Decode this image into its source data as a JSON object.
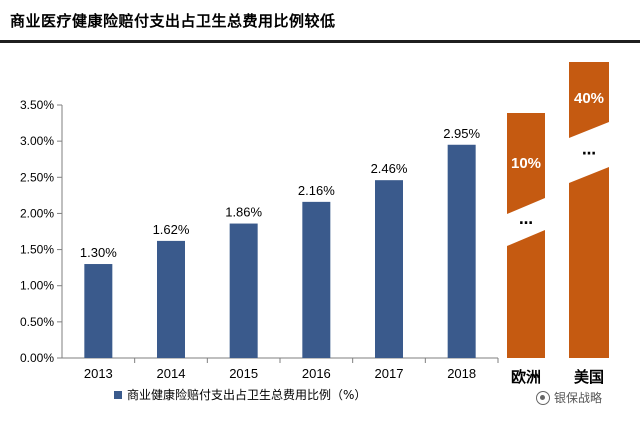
{
  "page": {
    "title": "商业医疗健康险赔付支出占卫生总费用比例较低",
    "watermark": "银保战略"
  },
  "colors": {
    "bar": "#3a5a8c",
    "compare": "#c55a11",
    "rule": "#1f1f1f"
  },
  "chart_data": {
    "type": "bar",
    "categories": [
      "2013",
      "2014",
      "2015",
      "2016",
      "2017",
      "2018"
    ],
    "series": [
      {
        "name": "商业健康险赔付支出占卫生总费用比例（%）",
        "values": [
          1.3,
          1.62,
          1.86,
          2.16,
          2.46,
          2.95
        ],
        "labels": [
          "1.30%",
          "1.62%",
          "1.86%",
          "2.16%",
          "2.46%",
          "2.95%"
        ]
      }
    ],
    "ylim": [
      0,
      3.5
    ],
    "yticks": [
      "0.00%",
      "0.50%",
      "1.00%",
      "1.50%",
      "2.00%",
      "2.50%",
      "3.00%",
      "3.50%"
    ],
    "grid": false,
    "legend_position": "bottom",
    "comparison": [
      {
        "category": "欧洲",
        "value_label": "10%",
        "ellipsis": "…"
      },
      {
        "category": "美国",
        "value_label": "40%",
        "ellipsis": "…"
      }
    ]
  }
}
